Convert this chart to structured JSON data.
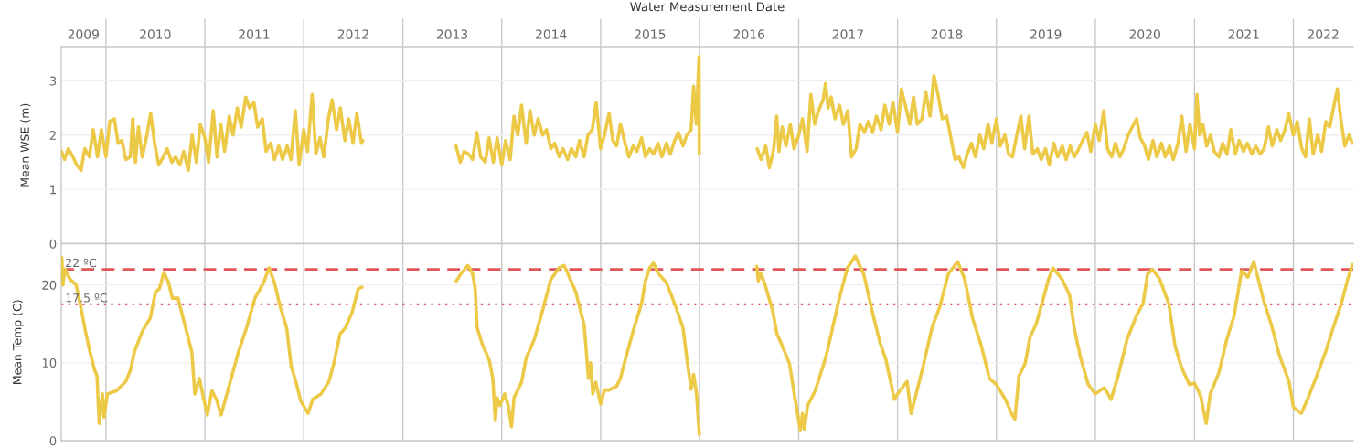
{
  "chart_data": [
    {
      "type": "line",
      "xlabel": "Water Measurement Date",
      "ylabel": "Mean WSE (m)",
      "xlim": [
        "2009-07-20",
        "2022-08-10"
      ],
      "xticks": [
        {
          "value": "2009-10-10",
          "label": "2009"
        },
        {
          "value": "2010-01-01",
          "label": null
        },
        {
          "value": "2010-07-02",
          "label": "2010"
        },
        {
          "value": "2011-01-01",
          "label": null
        },
        {
          "value": "2011-07-02",
          "label": "2011"
        },
        {
          "value": "2012-01-01",
          "label": null
        },
        {
          "value": "2012-07-02",
          "label": "2012"
        },
        {
          "value": "2013-01-01",
          "label": null
        },
        {
          "value": "2013-07-02",
          "label": "2013"
        },
        {
          "value": "2014-01-01",
          "label": null
        },
        {
          "value": "2014-07-02",
          "label": "2014"
        },
        {
          "value": "2015-01-01",
          "label": null
        },
        {
          "value": "2015-07-02",
          "label": "2015"
        },
        {
          "value": "2016-01-01",
          "label": null
        },
        {
          "value": "2016-07-02",
          "label": "2016"
        },
        {
          "value": "2017-01-01",
          "label": null
        },
        {
          "value": "2017-07-02",
          "label": "2017"
        },
        {
          "value": "2018-01-01",
          "label": null
        },
        {
          "value": "2018-07-02",
          "label": "2018"
        },
        {
          "value": "2019-01-01",
          "label": null
        },
        {
          "value": "2019-07-02",
          "label": "2019"
        },
        {
          "value": "2020-01-01",
          "label": null
        },
        {
          "value": "2020-07-02",
          "label": "2020"
        },
        {
          "value": "2021-01-01",
          "label": null
        },
        {
          "value": "2021-07-02",
          "label": "2021"
        },
        {
          "value": "2022-01-01",
          "label": null
        },
        {
          "value": "2022-04-21",
          "label": "2022"
        }
      ],
      "ylim": [
        0,
        3.63
      ],
      "yticks": [
        0,
        1,
        2,
        3
      ],
      "grid": true,
      "x": [
        "2009-07-21",
        "2009-08-01",
        "2009-08-15",
        "2009-09-01",
        "2009-09-15",
        "2009-10-01",
        "2009-10-15",
        "2009-11-01",
        "2009-11-15",
        "2009-12-01",
        "2009-12-15",
        "2010-01-01",
        "2010-01-15",
        "2010-02-01",
        "2010-02-15",
        "2010-03-01",
        "2010-03-15",
        "2010-04-01",
        "2010-04-10",
        "2010-04-20",
        "2010-05-01",
        "2010-05-15",
        "2010-06-01",
        "2010-06-15",
        "2010-07-01",
        "2010-07-15",
        "2010-08-01",
        "2010-08-15",
        "2010-09-01",
        "2010-09-15",
        "2010-10-01",
        "2010-10-15",
        "2010-11-01",
        "2010-11-15",
        "2010-12-01",
        "2010-12-15",
        "2011-01-01",
        "2011-01-15",
        "2011-02-01",
        "2011-02-15",
        "2011-03-01",
        "2011-03-15",
        "2011-04-01",
        "2011-04-15",
        "2011-05-01",
        "2011-05-15",
        "2011-06-01",
        "2011-06-15",
        "2011-07-01",
        "2011-07-15",
        "2011-08-01",
        "2011-08-15",
        "2011-09-01",
        "2011-09-15",
        "2011-10-01",
        "2011-10-15",
        "2011-11-01",
        "2011-11-15",
        "2011-12-01",
        "2011-12-15",
        "2012-01-01",
        "2012-01-15",
        "2012-02-01",
        "2012-02-15",
        "2012-03-01",
        "2012-03-15",
        "2012-04-01",
        "2012-04-15",
        "2012-05-01",
        "2012-05-15",
        "2012-06-01",
        "2012-06-15",
        "2012-07-01",
        "2012-07-15",
        "2012-08-01",
        "2012-08-06",
        "2013-01-01",
        "2013-07-16",
        "2013-08-01",
        "2013-08-15",
        "2013-09-01",
        "2013-09-15",
        "2013-10-01",
        "2013-10-15",
        "2013-11-01",
        "2013-11-15",
        "2013-12-01",
        "2013-12-15",
        "2014-01-01",
        "2014-01-15",
        "2014-02-01",
        "2014-02-15",
        "2014-03-01",
        "2014-03-15",
        "2014-04-01",
        "2014-04-15",
        "2014-05-01",
        "2014-05-15",
        "2014-06-01",
        "2014-06-15",
        "2014-07-01",
        "2014-07-15",
        "2014-08-01",
        "2014-08-15",
        "2014-09-01",
        "2014-09-15",
        "2014-10-01",
        "2014-10-15",
        "2014-11-01",
        "2014-11-15",
        "2014-12-01",
        "2014-12-15",
        "2015-01-01",
        "2015-01-15",
        "2015-02-01",
        "2015-02-15",
        "2015-03-01",
        "2015-03-15",
        "2015-04-01",
        "2015-04-15",
        "2015-05-01",
        "2015-05-15",
        "2015-06-01",
        "2015-06-15",
        "2015-07-01",
        "2015-07-15",
        "2015-08-01",
        "2015-08-15",
        "2015-09-01",
        "2015-09-15",
        "2015-10-01",
        "2015-10-15",
        "2015-11-01",
        "2015-11-15",
        "2015-12-01",
        "2015-12-10",
        "2015-12-20",
        "2015-12-30",
        "2015-12-31",
        "2016-03-01",
        "2016-08-01",
        "2016-08-15",
        "2016-09-01",
        "2016-09-15",
        "2016-10-01",
        "2016-10-12",
        "2016-10-20",
        "2016-11-01",
        "2016-11-15",
        "2016-12-01",
        "2016-12-15",
        "2017-01-01",
        "2017-01-15",
        "2017-02-01",
        "2017-02-15",
        "2017-03-01",
        "2017-03-15",
        "2017-04-01",
        "2017-04-10",
        "2017-04-20",
        "2017-05-01",
        "2017-05-15",
        "2017-06-01",
        "2017-06-15",
        "2017-07-01",
        "2017-07-15",
        "2017-08-01",
        "2017-08-15",
        "2017-09-01",
        "2017-09-15",
        "2017-10-01",
        "2017-10-15",
        "2017-11-01",
        "2017-11-15",
        "2017-12-01",
        "2017-12-15",
        "2018-01-01",
        "2018-01-15",
        "2018-02-01",
        "2018-02-15",
        "2018-03-01",
        "2018-03-15",
        "2018-04-01",
        "2018-04-15",
        "2018-05-01",
        "2018-05-15",
        "2018-06-01",
        "2018-06-15",
        "2018-07-01",
        "2018-07-15",
        "2018-08-01",
        "2018-08-15",
        "2018-09-01",
        "2018-09-15",
        "2018-10-01",
        "2018-10-15",
        "2018-11-01",
        "2018-11-15",
        "2018-12-01",
        "2018-12-15",
        "2019-01-01",
        "2019-01-15",
        "2019-02-01",
        "2019-02-15",
        "2019-03-01",
        "2019-03-15",
        "2019-04-01",
        "2019-04-15",
        "2019-05-01",
        "2019-05-15",
        "2019-06-01",
        "2019-06-15",
        "2019-07-01",
        "2019-07-15",
        "2019-08-01",
        "2019-08-15",
        "2019-09-01",
        "2019-09-15",
        "2019-10-01",
        "2019-10-15",
        "2019-11-01",
        "2019-11-15",
        "2019-12-01",
        "2019-12-15",
        "2020-01-01",
        "2020-01-15",
        "2020-02-01",
        "2020-02-15",
        "2020-03-01",
        "2020-03-15",
        "2020-04-01",
        "2020-04-15",
        "2020-05-01",
        "2020-06-01",
        "2020-06-15",
        "2020-07-01",
        "2020-07-15",
        "2020-08-01",
        "2020-08-15",
        "2020-09-01",
        "2020-09-15",
        "2020-10-01",
        "2020-10-15",
        "2020-11-01",
        "2020-11-15",
        "2020-12-01",
        "2020-12-15",
        "2021-01-01",
        "2021-01-10",
        "2021-01-20",
        "2021-02-01",
        "2021-02-15",
        "2021-03-01",
        "2021-03-15",
        "2021-04-01",
        "2021-04-15",
        "2021-05-01",
        "2021-05-15",
        "2021-06-01",
        "2021-06-15",
        "2021-07-01",
        "2021-07-15",
        "2021-08-01",
        "2021-08-15",
        "2021-09-01",
        "2021-09-15",
        "2021-10-01",
        "2021-10-15",
        "2021-11-01",
        "2021-11-15",
        "2021-12-01",
        "2021-12-15",
        "2022-01-01",
        "2022-01-15",
        "2022-02-01",
        "2022-02-15",
        "2022-03-01",
        "2022-03-15",
        "2022-04-01",
        "2022-04-15",
        "2022-05-01",
        "2022-05-15",
        "2022-06-12",
        "2022-06-25",
        "2022-07-10",
        "2022-07-25",
        "2022-08-08"
      ],
      "series": [
        {
          "color": "#edc948",
          "values": [
            1.7,
            1.55,
            1.75,
            1.6,
            1.45,
            1.35,
            1.75,
            1.6,
            2.1,
            1.6,
            2.1,
            1.6,
            2.25,
            2.3,
            1.85,
            1.9,
            1.55,
            1.6,
            2.3,
            1.5,
            2.15,
            1.6,
            2.0,
            2.4,
            1.8,
            1.45,
            1.6,
            1.75,
            1.5,
            1.6,
            1.45,
            1.7,
            1.35,
            2.0,
            1.5,
            2.2,
            1.95,
            1.5,
            2.45,
            1.6,
            2.2,
            1.7,
            2.35,
            2.0,
            2.5,
            2.15,
            2.7,
            2.5,
            2.6,
            2.15,
            2.3,
            1.7,
            1.85,
            1.55,
            1.8,
            1.55,
            1.8,
            1.55,
            2.45,
            1.45,
            2.1,
            1.7,
            2.75,
            1.65,
            1.95,
            1.6,
            2.3,
            2.65,
            2.1,
            2.5,
            1.9,
            2.3,
            1.85,
            2.4,
            1.85,
            1.9,
            null,
            1.8,
            1.5,
            1.7,
            1.65,
            1.55,
            2.05,
            1.6,
            1.5,
            1.95,
            1.5,
            1.95,
            1.45,
            1.9,
            1.55,
            2.35,
            2.0,
            2.55,
            1.85,
            2.45,
            2.0,
            2.3,
            2.0,
            2.1,
            1.75,
            1.85,
            1.6,
            1.75,
            1.55,
            1.75,
            1.6,
            1.9,
            1.6,
            2.0,
            2.1,
            2.6,
            1.75,
            2.0,
            2.4,
            1.9,
            1.8,
            2.2,
            1.85,
            1.6,
            1.8,
            1.7,
            1.95,
            1.6,
            1.75,
            1.65,
            1.85,
            1.6,
            1.85,
            1.65,
            1.9,
            2.05,
            1.8,
            2.0,
            2.1,
            2.9,
            2.2,
            3.45,
            1.65,
            null,
            1.75,
            1.55,
            1.8,
            1.4,
            1.75,
            2.35,
            1.7,
            2.15,
            1.8,
            2.2,
            1.75,
            2.0,
            2.3,
            1.7,
            2.75,
            2.2,
            2.45,
            2.65,
            2.95,
            2.5,
            2.7,
            2.3,
            2.55,
            2.2,
            2.45,
            1.6,
            1.75,
            2.2,
            2.05,
            2.25,
            2.05,
            2.35,
            2.1,
            2.55,
            2.2,
            2.6,
            2.05,
            2.85,
            2.5,
            2.2,
            2.7,
            2.2,
            2.3,
            2.8,
            2.35,
            3.1,
            2.7,
            2.3,
            2.35,
            2.0,
            1.55,
            1.6,
            1.4,
            1.65,
            1.85,
            1.6,
            2.0,
            1.75,
            2.2,
            1.85,
            2.3,
            1.8,
            2.0,
            1.65,
            1.6,
            1.95,
            2.35,
            1.75,
            2.35,
            1.65,
            1.75,
            1.55,
            1.75,
            1.45,
            1.85,
            1.6,
            1.8,
            1.55,
            1.8,
            1.6,
            1.75,
            1.9,
            2.05,
            1.7,
            2.2,
            1.9,
            2.45,
            1.75,
            1.6,
            1.85,
            1.6,
            1.75,
            2.0,
            2.3,
            1.95,
            1.8,
            1.55,
            1.9,
            1.6,
            1.85,
            1.6,
            1.8,
            1.55,
            1.85,
            2.35,
            1.7,
            2.2,
            1.75,
            2.75,
            2.0,
            2.2,
            1.8,
            2.0,
            1.7,
            1.6,
            1.85,
            1.65,
            2.1,
            1.65,
            1.9,
            1.7,
            1.85,
            1.65,
            1.8,
            1.65,
            1.75,
            2.15,
            1.8,
            2.1,
            1.9,
            2.1,
            2.4,
            2.0,
            2.25,
            1.75,
            1.6,
            2.3,
            1.65,
            2.0,
            1.7,
            2.25,
            2.15,
            2.85,
            2.3,
            1.8,
            2.0,
            1.85
          ]
        }
      ]
    },
    {
      "type": "line",
      "ylabel": "Mean Temp (C)",
      "tick_labels": "y",
      "xlim": [
        "2009-07-20",
        "2022-08-10"
      ],
      "xticks": [
        {
          "value": "2010-01-01",
          "label": null
        },
        {
          "value": "2011-01-01",
          "label": null
        },
        {
          "value": "2012-01-01",
          "label": null
        },
        {
          "value": "2013-01-01",
          "label": null
        },
        {
          "value": "2014-01-01",
          "label": null
        },
        {
          "value": "2015-01-01",
          "label": null
        },
        {
          "value": "2016-01-01",
          "label": null
        },
        {
          "value": "2017-01-01",
          "label": null
        },
        {
          "value": "2018-01-01",
          "label": null
        },
        {
          "value": "2019-01-01",
          "label": null
        },
        {
          "value": "2020-01-01",
          "label": null
        },
        {
          "value": "2021-01-01",
          "label": null
        },
        {
          "value": "2022-01-01",
          "label": null
        }
      ],
      "ylim": [
        0,
        25.3
      ],
      "yticks": [
        0,
        10,
        20
      ],
      "grid": true,
      "ref_lines": [
        {
          "axis": "y",
          "value": 22,
          "label": "22 ºC",
          "color": "#e15759",
          "line_style": "dashed"
        },
        {
          "axis": "y",
          "value": 17.5,
          "label": "17.5 ºC",
          "color": "#e15759",
          "line_style": "dotted"
        }
      ],
      "x": [
        "2009-07-22",
        "2009-07-26",
        "2009-08-03",
        "2009-08-20",
        "2009-09-13",
        "2009-09-30",
        "2009-10-17",
        "2009-11-03",
        "2009-11-20",
        "2009-11-29",
        "2009-12-07",
        "2009-12-19",
        "2009-12-25",
        "2010-01-06",
        "2010-02-09",
        "2010-03-15",
        "2010-04-02",
        "2010-04-16",
        "2010-05-16",
        "2010-06-13",
        "2010-07-03",
        "2010-07-17",
        "2010-08-03",
        "2010-08-20",
        "2010-09-03",
        "2010-09-24",
        "2010-10-16",
        "2010-11-14",
        "2010-11-25",
        "2010-12-12",
        "2010-12-24",
        "2011-01-10",
        "2011-01-27",
        "2011-02-13",
        "2011-03-02",
        "2011-04-05",
        "2011-05-05",
        "2011-06-04",
        "2011-07-05",
        "2011-08-06",
        "2011-08-26",
        "2011-09-15",
        "2011-10-06",
        "2011-10-30",
        "2011-11-16",
        "2011-12-03",
        "2011-12-21",
        "2012-01-17",
        "2012-02-03",
        "2012-03-05",
        "2012-04-03",
        "2012-04-21",
        "2012-05-14",
        "2012-06-03",
        "2012-06-27",
        "2012-07-20",
        "2012-08-03",
        "2013-01-01",
        "2013-07-17",
        "2013-08-05",
        "2013-08-29",
        "2013-09-15",
        "2013-09-25",
        "2013-10-02",
        "2013-10-20",
        "2013-11-16",
        "2013-11-29",
        "2013-12-08",
        "2013-12-15",
        "2013-12-25",
        "2014-01-12",
        "2014-01-25",
        "2014-02-06",
        "2014-02-15",
        "2014-03-01",
        "2014-03-15",
        "2014-04-01",
        "2014-05-01",
        "2014-06-01",
        "2014-07-01",
        "2014-08-01",
        "2014-08-19",
        "2014-09-01",
        "2014-10-01",
        "2014-11-01",
        "2014-11-17",
        "2014-11-25",
        "2014-12-03",
        "2014-12-14",
        "2015-01-01",
        "2015-01-15",
        "2015-02-01",
        "2015-03-01",
        "2015-03-15",
        "2015-04-01",
        "2015-05-01",
        "2015-06-01",
        "2015-06-15",
        "2015-07-01",
        "2015-07-15",
        "2015-08-01",
        "2015-09-01",
        "2015-10-01",
        "2015-11-01",
        "2015-11-15",
        "2015-12-01",
        "2015-12-10",
        "2015-12-21",
        "2015-12-31",
        "2016-03-01",
        "2016-07-30",
        "2016-08-05",
        "2016-08-15",
        "2016-08-31",
        "2016-09-26",
        "2016-10-13",
        "2016-11-01",
        "2016-11-28",
        "2016-12-17",
        "2017-01-07",
        "2017-01-15",
        "2017-01-22",
        "2017-02-03",
        "2017-03-03",
        "2017-04-11",
        "2017-05-01",
        "2017-05-31",
        "2017-06-30",
        "2017-07-29",
        "2017-08-29",
        "2017-09-28",
        "2017-10-28",
        "2017-11-19",
        "2017-12-20",
        "2018-01-01",
        "2018-02-05",
        "2018-02-20",
        "2018-03-15",
        "2018-04-05",
        "2018-05-08",
        "2018-06-06",
        "2018-07-07",
        "2018-08-11",
        "2018-09-06",
        "2018-10-05",
        "2018-11-06",
        "2018-12-06",
        "2019-01-01",
        "2019-02-03",
        "2019-02-28",
        "2019-03-10",
        "2019-03-25",
        "2019-04-17",
        "2019-05-05",
        "2019-05-27",
        "2019-06-18",
        "2019-07-12",
        "2019-07-28",
        "2019-08-30",
        "2019-09-28",
        "2019-10-15",
        "2019-11-07",
        "2019-12-06",
        "2020-01-01",
        "2020-02-03",
        "2020-02-28",
        "2020-03-25",
        "2020-04-27",
        "2020-05-31",
        "2020-06-25",
        "2020-07-12",
        "2020-07-30",
        "2020-08-26",
        "2020-09-28",
        "2020-10-21",
        "2020-11-13",
        "2020-12-13",
        "2021-01-01",
        "2021-01-24",
        "2021-02-13",
        "2021-02-28",
        "2021-04-01",
        "2021-04-30",
        "2021-05-27",
        "2021-06-24",
        "2021-07-17",
        "2021-08-08",
        "2021-09-11",
        "2021-10-15",
        "2021-11-10",
        "2021-12-16",
        "2022-01-01",
        "2022-01-30",
        "2022-02-22",
        "2022-03-28",
        "2022-04-30",
        "2022-05-28",
        "2022-06-27",
        "2022-07-20",
        "2022-08-07"
      ],
      "series": [
        {
          "color": "#edc948",
          "values": [
            23.5,
            20.0,
            22.0,
            20.8,
            20.0,
            17.2,
            14.1,
            11.4,
            9.1,
            8.3,
            2.2,
            6.0,
            3.0,
            6.0,
            6.4,
            7.6,
            9.1,
            11.4,
            14.1,
            15.7,
            19.1,
            19.5,
            21.6,
            20.3,
            18.3,
            18.3,
            15.3,
            11.4,
            6.0,
            8.0,
            6.0,
            3.3,
            6.4,
            5.3,
            3.3,
            7.6,
            11.4,
            14.5,
            18.3,
            20.3,
            22.2,
            20.3,
            17.2,
            14.5,
            9.5,
            7.6,
            5.1,
            3.5,
            5.3,
            6.0,
            7.6,
            9.9,
            13.7,
            14.5,
            16.4,
            19.5,
            19.7,
            null,
            20.5,
            21.5,
            22.5,
            21.5,
            19.5,
            14.5,
            12.5,
            10.3,
            8.0,
            2.6,
            5.5,
            4.5,
            6.0,
            4.5,
            1.8,
            5.5,
            6.5,
            7.5,
            10.6,
            13.0,
            16.8,
            20.7,
            22.2,
            22.5,
            21.5,
            19.1,
            14.9,
            8.0,
            10.0,
            6.0,
            7.5,
            4.7,
            6.5,
            6.5,
            7.0,
            8.0,
            10.3,
            14.1,
            17.6,
            20.5,
            22.2,
            22.8,
            21.5,
            20.3,
            17.6,
            14.5,
            10.6,
            6.6,
            8.5,
            6.0,
            0.8,
            null,
            22.4,
            20.5,
            21.5,
            19.9,
            16.8,
            13.7,
            12.2,
            9.9,
            5.7,
            1.4,
            3.5,
            1.5,
            4.5,
            6.4,
            10.7,
            13.7,
            18.3,
            22.2,
            23.7,
            21.4,
            16.8,
            12.6,
            10.4,
            5.3,
            6.0,
            7.6,
            3.5,
            6.6,
            9.5,
            14.5,
            17.2,
            21.4,
            23.0,
            20.7,
            15.7,
            12.2,
            8.0,
            7.2,
            5.3,
            3.3,
            2.8,
            8.3,
            9.9,
            13.3,
            14.9,
            17.6,
            20.7,
            22.2,
            20.8,
            18.7,
            14.5,
            10.7,
            7.2,
            6.0,
            6.8,
            5.3,
            8.3,
            13.0,
            16.0,
            17.6,
            21.4,
            22.0,
            20.7,
            17.6,
            12.2,
            9.5,
            7.2,
            7.4,
            5.7,
            2.2,
            6.0,
            8.7,
            13.0,
            16.0,
            21.8,
            21.0,
            23.0,
            18.3,
            14.5,
            11.0,
            7.6,
            4.3,
            3.5,
            5.3,
            8.3,
            11.4,
            14.5,
            17.6,
            20.7,
            22.6
          ]
        }
      ]
    }
  ]
}
